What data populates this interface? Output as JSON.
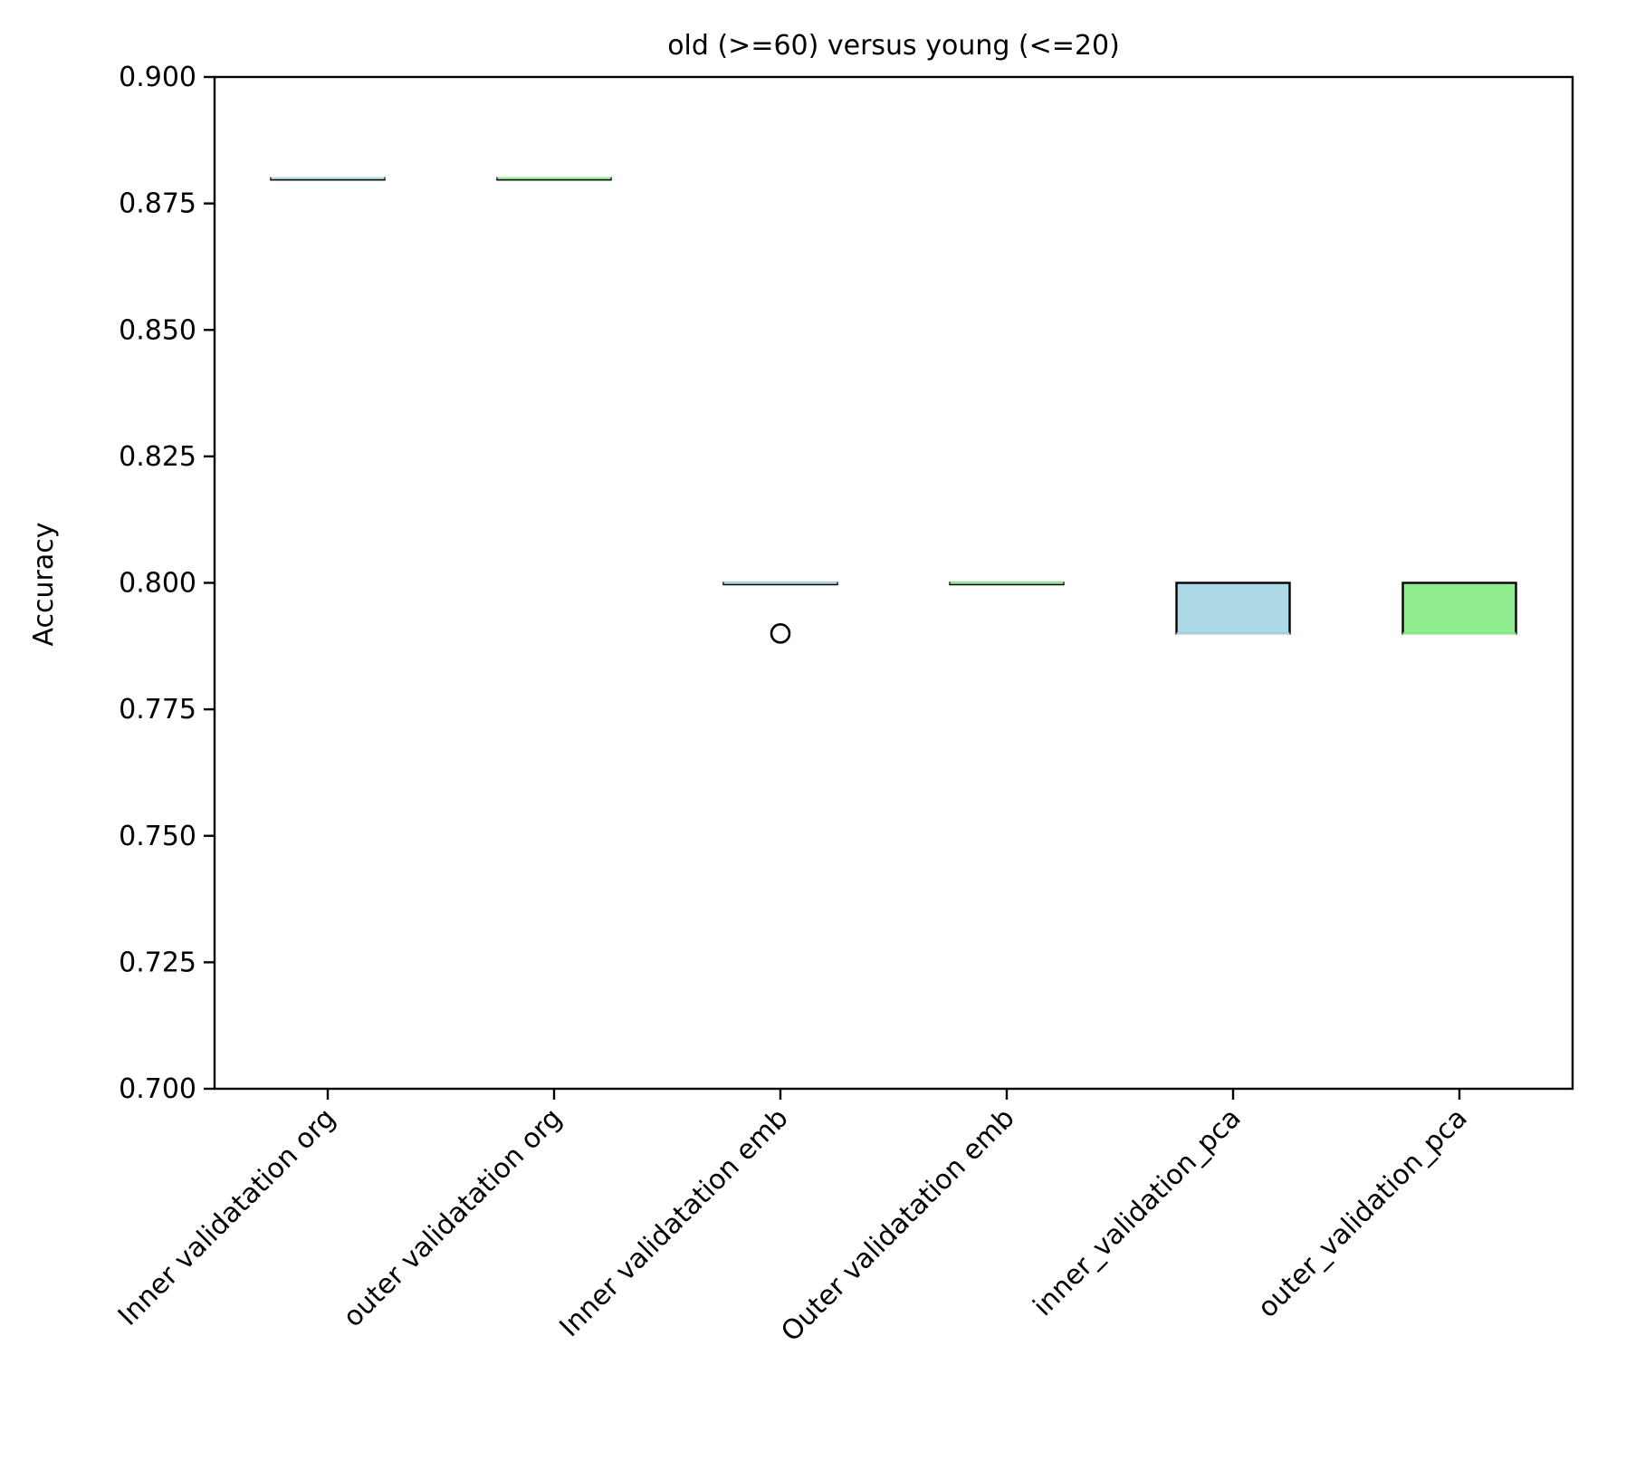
{
  "chart_data": {
    "type": "boxplot",
    "title": "old (>=60) versus young (<=20)",
    "xlabel": "",
    "ylabel": "Accuracy",
    "ylim": [
      0.7,
      0.9
    ],
    "yticks": [
      "0.700",
      "0.725",
      "0.750",
      "0.775",
      "0.800",
      "0.825",
      "0.850",
      "0.875",
      "0.900"
    ],
    "grid": false,
    "categories": [
      "Inner validatation org",
      "outer validatation org",
      "Inner validatation emb",
      "Outer validatation emb",
      "inner_validation_pca",
      "outer_validation_pca"
    ],
    "boxes": [
      {
        "q1": 0.88,
        "median": 0.88,
        "q3": 0.88,
        "whisker_low": 0.88,
        "whisker_high": 0.88,
        "outliers": [],
        "color": "#add8e6"
      },
      {
        "q1": 0.88,
        "median": 0.88,
        "q3": 0.88,
        "whisker_low": 0.88,
        "whisker_high": 0.88,
        "outliers": [],
        "color": "#90ee90"
      },
      {
        "q1": 0.8,
        "median": 0.8,
        "q3": 0.8,
        "whisker_low": 0.8,
        "whisker_high": 0.8,
        "outliers": [
          0.79
        ],
        "color": "#add8e6"
      },
      {
        "q1": 0.8,
        "median": 0.8,
        "q3": 0.8,
        "whisker_low": 0.8,
        "whisker_high": 0.8,
        "outliers": [],
        "color": "#90ee90"
      },
      {
        "q1": 0.79,
        "median": 0.79,
        "q3": 0.8,
        "whisker_low": 0.79,
        "whisker_high": 0.8,
        "outliers": [],
        "color": "#add8e6"
      },
      {
        "q1": 0.79,
        "median": 0.79,
        "q3": 0.8,
        "whisker_low": 0.79,
        "whisker_high": 0.8,
        "outliers": [],
        "color": "#90ee90"
      }
    ]
  }
}
